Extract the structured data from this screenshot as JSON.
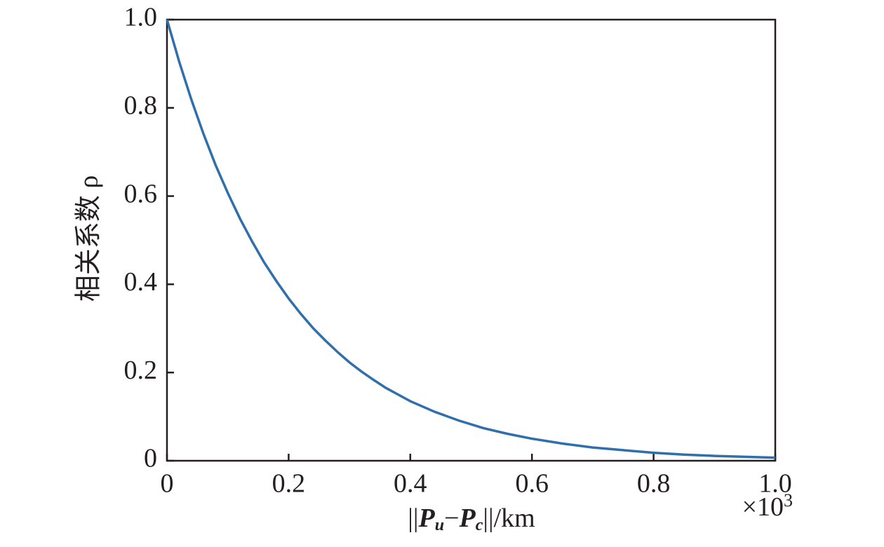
{
  "chart_data": {
    "type": "line",
    "x_label_parts": [
      "||",
      "P",
      "u",
      "−",
      "P",
      "c",
      "||/km"
    ],
    "y_label": "相关系数 ρ",
    "x_multiplier": [
      "×10",
      "3"
    ],
    "x": [
      0,
      0.02,
      0.04,
      0.06,
      0.08,
      0.1,
      0.12,
      0.14,
      0.16,
      0.18,
      0.2,
      0.22,
      0.24,
      0.26,
      0.28,
      0.3,
      0.32,
      0.34,
      0.36,
      0.38,
      0.4,
      0.44,
      0.48,
      0.52,
      0.56,
      0.6,
      0.65,
      0.7,
      0.75,
      0.8,
      0.85,
      0.9,
      0.95,
      1.0
    ],
    "series": [
      {
        "color": "#2e6fac",
        "values": [
          1,
          0.905,
          0.819,
          0.741,
          0.67,
          0.607,
          0.549,
          0.497,
          0.449,
          0.407,
          0.368,
          0.333,
          0.301,
          0.273,
          0.247,
          0.223,
          0.202,
          0.183,
          0.165,
          0.15,
          0.135,
          0.111,
          0.091,
          0.074,
          0.061,
          0.05,
          0.039,
          0.03,
          0.024,
          0.018,
          0.014,
          0.011,
          0.009,
          0.007
        ]
      }
    ],
    "xlim": [
      0,
      1
    ],
    "ylim": [
      0,
      1
    ],
    "xticks": [
      0,
      0.2,
      0.4,
      0.6,
      0.8,
      {
        "value": 1,
        "label": "1.0"
      }
    ],
    "yticks": [
      0,
      0.2,
      0.4,
      0.6,
      0.8,
      {
        "value": 1,
        "label": "1.0"
      }
    ]
  }
}
